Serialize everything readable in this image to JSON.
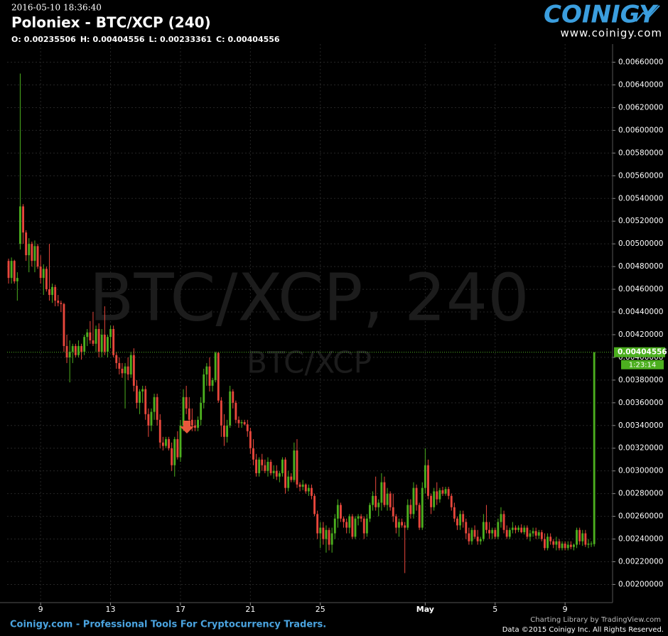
{
  "header": {
    "timestamp": "2016-05-10 18:36:40",
    "title": "Poloniex - BTC/XCP (240)",
    "ohlc_labels": [
      "O:",
      "H:",
      "L:",
      "C:"
    ]
  },
  "logo": {
    "name": "COINIGY",
    "url": "www.coinigy.com"
  },
  "footer": {
    "tagline": "Coinigy.com - Professional Tools For Cryptocurrency Traders.",
    "credit": "Charting Library by TradingView.com",
    "copyright": "Data ©2015 Coinigy Inc. All Rights Reserved."
  },
  "chart_data": {
    "type": "candlestick",
    "watermark": "BTC/XCP, 240",
    "watermark_sub": "BTC/XCP",
    "countdown": "1:23:14",
    "up_color": "#4caf1f",
    "down_color": "#e8473c",
    "grid": true,
    "xlim": [
      -0.5,
      207.3
    ],
    "xticks": [
      {
        "value": 11,
        "label": "9"
      },
      {
        "value": 35,
        "label": "13"
      },
      {
        "value": 59,
        "label": "17"
      },
      {
        "value": 83,
        "label": "21"
      },
      {
        "value": 107,
        "label": "25"
      },
      {
        "value": 143,
        "label": "May"
      },
      {
        "value": 167,
        "label": "5"
      },
      {
        "value": 191,
        "label": "9"
      }
    ],
    "ylim": [
      0.00184,
      0.00676
    ],
    "yticks": [
      {
        "value": 0.002,
        "label": "0.00200000"
      },
      {
        "value": 0.0022,
        "label": "0.00220000"
      },
      {
        "value": 0.0024,
        "label": "0.00240000"
      },
      {
        "value": 0.0026,
        "label": "0.00260000"
      },
      {
        "value": 0.0028,
        "label": "0.00280000"
      },
      {
        "value": 0.003,
        "label": "0.00300000"
      },
      {
        "value": 0.0032,
        "label": "0.00320000"
      },
      {
        "value": 0.0034,
        "label": "0.00340000"
      },
      {
        "value": 0.0036,
        "label": "0.00360000"
      },
      {
        "value": 0.0038,
        "label": "0.00380000"
      },
      {
        "value": 0.004,
        "label": "0.00400000"
      },
      {
        "value": 0.0042,
        "label": "0.00420000"
      },
      {
        "value": 0.0044,
        "label": "0.00440000"
      },
      {
        "value": 0.0046,
        "label": "0.00460000"
      },
      {
        "value": 0.0048,
        "label": "0.00480000"
      },
      {
        "value": 0.005,
        "label": "0.00500000"
      },
      {
        "value": 0.0052,
        "label": "0.00520000"
      },
      {
        "value": 0.0054,
        "label": "0.00540000"
      },
      {
        "value": 0.0056,
        "label": "0.00560000"
      },
      {
        "value": 0.0058,
        "label": "0.00580000"
      },
      {
        "value": 0.006,
        "label": "0.00600000"
      },
      {
        "value": 0.0062,
        "label": "0.00620000"
      },
      {
        "value": 0.0064,
        "label": "0.00640000"
      },
      {
        "value": 0.0066,
        "label": "0.00660000"
      }
    ],
    "ohlc": [
      [
        0.00485,
        0.00487,
        0.00465,
        0.0047
      ],
      [
        0.0047,
        0.00488,
        0.00465,
        0.00485
      ],
      [
        0.00485,
        0.00486,
        0.00465,
        0.00467
      ],
      [
        0.00467,
        0.00475,
        0.0045,
        0.0047
      ],
      [
        0.005,
        0.0065,
        0.00495,
        0.00533
      ],
      [
        0.00533,
        0.00535,
        0.005,
        0.0051
      ],
      [
        0.0051,
        0.00512,
        0.00485,
        0.0049
      ],
      [
        0.0049,
        0.00505,
        0.00475,
        0.005
      ],
      [
        0.005,
        0.00502,
        0.0048,
        0.00485
      ],
      [
        0.00485,
        0.00503,
        0.00475,
        0.00498
      ],
      [
        0.00498,
        0.005,
        0.00478,
        0.0048
      ],
      [
        0.0048,
        0.0049,
        0.00465,
        0.0047
      ],
      [
        0.0047,
        0.00482,
        0.00455,
        0.00478
      ],
      [
        0.00478,
        0.0048,
        0.00458,
        0.0046
      ],
      [
        0.0046,
        0.005,
        0.0045,
        0.00455
      ],
      [
        0.00455,
        0.00465,
        0.00448,
        0.00462
      ],
      [
        0.00462,
        0.00464,
        0.00445,
        0.0045
      ],
      [
        0.0045,
        0.00455,
        0.00445,
        0.00448
      ],
      [
        0.00448,
        0.0045,
        0.0044,
        0.00447
      ],
      [
        0.00447,
        0.00448,
        0.00405,
        0.0041
      ],
      [
        0.0041,
        0.0042,
        0.00395,
        0.004
      ],
      [
        0.004,
        0.00415,
        0.00378,
        0.00405
      ],
      [
        0.00405,
        0.00412,
        0.00395,
        0.0041
      ],
      [
        0.0041,
        0.00412,
        0.004,
        0.00402
      ],
      [
        0.00402,
        0.00415,
        0.004,
        0.0041
      ],
      [
        0.0041,
        0.00412,
        0.00398,
        0.00405
      ],
      [
        0.00405,
        0.0042,
        0.00402,
        0.00418
      ],
      [
        0.00418,
        0.00425,
        0.0041,
        0.00422
      ],
      [
        0.00422,
        0.00432,
        0.00412,
        0.00415
      ],
      [
        0.00415,
        0.0044,
        0.0041,
        0.00412
      ],
      [
        0.00412,
        0.00428,
        0.00405,
        0.00425
      ],
      [
        0.00425,
        0.0043,
        0.004,
        0.00405
      ],
      [
        0.00405,
        0.00425,
        0.004,
        0.0042
      ],
      [
        0.0042,
        0.00445,
        0.00402,
        0.00405
      ],
      [
        0.00405,
        0.0042,
        0.004,
        0.00418
      ],
      [
        0.00418,
        0.00428,
        0.00408,
        0.00425
      ],
      [
        0.00425,
        0.00428,
        0.004,
        0.00402
      ],
      [
        0.00402,
        0.00405,
        0.0039,
        0.00395
      ],
      [
        0.00395,
        0.004,
        0.00385,
        0.0039
      ],
      [
        0.0039,
        0.00395,
        0.00382,
        0.00386
      ],
      [
        0.00386,
        0.00395,
        0.00355,
        0.00392
      ],
      [
        0.00392,
        0.004,
        0.0038,
        0.00385
      ],
      [
        0.00385,
        0.00405,
        0.00382,
        0.00402
      ],
      [
        0.00402,
        0.00408,
        0.0037,
        0.00375
      ],
      [
        0.00375,
        0.0038,
        0.00355,
        0.0036
      ],
      [
        0.0036,
        0.00372,
        0.0035,
        0.0037
      ],
      [
        0.0037,
        0.00375,
        0.0036,
        0.00372
      ],
      [
        0.00372,
        0.00375,
        0.00345,
        0.0035
      ],
      [
        0.0035,
        0.00355,
        0.0033,
        0.0034
      ],
      [
        0.0034,
        0.00355,
        0.00335,
        0.00352
      ],
      [
        0.00352,
        0.00368,
        0.00345,
        0.00365
      ],
      [
        0.00365,
        0.00368,
        0.0034,
        0.00345
      ],
      [
        0.00345,
        0.0035,
        0.0032,
        0.00325
      ],
      [
        0.00325,
        0.0033,
        0.00318,
        0.00322
      ],
      [
        0.00322,
        0.0033,
        0.0032,
        0.00328
      ],
      [
        0.00328,
        0.0033,
        0.00318,
        0.0032
      ],
      [
        0.0032,
        0.00325,
        0.003,
        0.00305
      ],
      [
        0.00305,
        0.0033,
        0.00295,
        0.00328
      ],
      [
        0.00328,
        0.00335,
        0.0031,
        0.00312
      ],
      [
        0.00312,
        0.00345,
        0.00308,
        0.0034
      ],
      [
        0.0034,
        0.00372,
        0.00335,
        0.00365
      ],
      [
        0.00365,
        0.00375,
        0.0035,
        0.00355
      ],
      [
        0.00355,
        0.00365,
        0.0034,
        0.00345
      ],
      [
        0.00345,
        0.00355,
        0.00335,
        0.0034
      ],
      [
        0.0034,
        0.00345,
        0.00335,
        0.00338
      ],
      [
        0.00338,
        0.00348,
        0.00335,
        0.00345
      ],
      [
        0.00345,
        0.00365,
        0.0034,
        0.0036
      ],
      [
        0.0036,
        0.0039,
        0.00355,
        0.00385
      ],
      [
        0.00385,
        0.00395,
        0.00375,
        0.00392
      ],
      [
        0.00392,
        0.004,
        0.0037,
        0.00375
      ],
      [
        0.00375,
        0.00382,
        0.0037,
        0.0038
      ],
      [
        0.0038,
        0.00405,
        0.00378,
        0.00404
      ],
      [
        0.00404,
        0.00405,
        0.0036,
        0.00362
      ],
      [
        0.00362,
        0.00365,
        0.0033,
        0.0034
      ],
      [
        0.0034,
        0.0035,
        0.00322,
        0.0033
      ],
      [
        0.0033,
        0.00345,
        0.00325,
        0.0034
      ],
      [
        0.0034,
        0.00375,
        0.00338,
        0.0037
      ],
      [
        0.0037,
        0.00372,
        0.00355,
        0.0036
      ],
      [
        0.0036,
        0.00362,
        0.00342,
        0.00345
      ],
      [
        0.00345,
        0.00348,
        0.00338,
        0.00342
      ],
      [
        0.00342,
        0.00345,
        0.00338,
        0.00343
      ],
      [
        0.00343,
        0.00345,
        0.0034,
        0.00341
      ],
      [
        0.00341,
        0.00345,
        0.0033,
        0.00335
      ],
      [
        0.00335,
        0.00338,
        0.00315,
        0.0032
      ],
      [
        0.0032,
        0.00328,
        0.00305,
        0.0031
      ],
      [
        0.0031,
        0.00315,
        0.00295,
        0.00298
      ],
      [
        0.00298,
        0.00312,
        0.00295,
        0.0031
      ],
      [
        0.0031,
        0.00315,
        0.003,
        0.00305
      ],
      [
        0.00305,
        0.0031,
        0.00298,
        0.003
      ],
      [
        0.003,
        0.00312,
        0.00295,
        0.00308
      ],
      [
        0.00308,
        0.0031,
        0.00296,
        0.00298
      ],
      [
        0.00298,
        0.00305,
        0.00293,
        0.003
      ],
      [
        0.003,
        0.00305,
        0.00292,
        0.00295
      ],
      [
        0.00295,
        0.003,
        0.0029,
        0.00298
      ],
      [
        0.00298,
        0.00312,
        0.00295,
        0.0031
      ],
      [
        0.0031,
        0.00312,
        0.0028,
        0.00285
      ],
      [
        0.00285,
        0.003,
        0.00282,
        0.00295
      ],
      [
        0.00295,
        0.00298,
        0.0029,
        0.00292
      ],
      [
        0.00292,
        0.00325,
        0.0029,
        0.00318
      ],
      [
        0.00318,
        0.00328,
        0.00285,
        0.00288
      ],
      [
        0.00288,
        0.0029,
        0.00282,
        0.00286
      ],
      [
        0.00286,
        0.00292,
        0.00283,
        0.00288
      ],
      [
        0.00288,
        0.00289,
        0.0028,
        0.00282
      ],
      [
        0.00282,
        0.00288,
        0.00278,
        0.00285
      ],
      [
        0.00285,
        0.00288,
        0.00275,
        0.00278
      ],
      [
        0.00278,
        0.0028,
        0.0026,
        0.00262
      ],
      [
        0.00262,
        0.00265,
        0.0024,
        0.00245
      ],
      [
        0.00245,
        0.00255,
        0.00232,
        0.0025
      ],
      [
        0.0025,
        0.00255,
        0.00235,
        0.0024
      ],
      [
        0.0024,
        0.00252,
        0.00228,
        0.00248
      ],
      [
        0.00248,
        0.0025,
        0.0023,
        0.00235
      ],
      [
        0.00235,
        0.0025,
        0.00228,
        0.00245
      ],
      [
        0.00245,
        0.00262,
        0.0024,
        0.00258
      ],
      [
        0.00258,
        0.00275,
        0.0025,
        0.0027
      ],
      [
        0.0027,
        0.00272,
        0.00255,
        0.00258
      ],
      [
        0.00258,
        0.0026,
        0.0025,
        0.00255
      ],
      [
        0.00255,
        0.00258,
        0.00245,
        0.0025
      ],
      [
        0.0025,
        0.00262,
        0.00245,
        0.0026
      ],
      [
        0.0026,
        0.00262,
        0.0024,
        0.00242
      ],
      [
        0.00242,
        0.0026,
        0.0024,
        0.00258
      ],
      [
        0.00258,
        0.00262,
        0.00252,
        0.0026
      ],
      [
        0.0026,
        0.00262,
        0.00255,
        0.00258
      ],
      [
        0.00258,
        0.0026,
        0.0024,
        0.00245
      ],
      [
        0.00245,
        0.00262,
        0.00242,
        0.00258
      ],
      [
        0.00258,
        0.00272,
        0.00255,
        0.0027
      ],
      [
        0.0027,
        0.00282,
        0.00265,
        0.00278
      ],
      [
        0.00278,
        0.00295,
        0.00265,
        0.00268
      ],
      [
        0.00268,
        0.00275,
        0.0026,
        0.00272
      ],
      [
        0.00272,
        0.00298,
        0.00265,
        0.0029
      ],
      [
        0.0029,
        0.00295,
        0.00268,
        0.0027
      ],
      [
        0.0027,
        0.00285,
        0.00265,
        0.0028
      ],
      [
        0.0028,
        0.00282,
        0.00265,
        0.00268
      ],
      [
        0.00268,
        0.0028,
        0.00255,
        0.0026
      ],
      [
        0.0026,
        0.00262,
        0.00245,
        0.0025
      ],
      [
        0.0025,
        0.00258,
        0.00242,
        0.00255
      ],
      [
        0.00255,
        0.00258,
        0.0025,
        0.00252
      ],
      [
        0.00252,
        0.00255,
        0.0021,
        0.0025
      ],
      [
        0.0025,
        0.00275,
        0.00248,
        0.0027
      ],
      [
        0.0027,
        0.00275,
        0.00258,
        0.00262
      ],
      [
        0.00262,
        0.0029,
        0.00258,
        0.00285
      ],
      [
        0.00285,
        0.00288,
        0.00265,
        0.0027
      ],
      [
        0.0027,
        0.00272,
        0.00248,
        0.0025
      ],
      [
        0.0025,
        0.0029,
        0.00248,
        0.00285
      ],
      [
        0.00285,
        0.0032,
        0.0028,
        0.00305
      ],
      [
        0.00305,
        0.0031,
        0.00275,
        0.00278
      ],
      [
        0.00278,
        0.0028,
        0.00262,
        0.00268
      ],
      [
        0.00268,
        0.00285,
        0.00265,
        0.00282
      ],
      [
        0.00282,
        0.0029,
        0.0027,
        0.00275
      ],
      [
        0.00275,
        0.00285,
        0.00272,
        0.00283
      ],
      [
        0.00283,
        0.00286,
        0.00278,
        0.0028
      ],
      [
        0.0028,
        0.00286,
        0.00278,
        0.00284
      ],
      [
        0.00284,
        0.00286,
        0.00275,
        0.00278
      ],
      [
        0.00278,
        0.0028,
        0.00265,
        0.00268
      ],
      [
        0.00268,
        0.00272,
        0.00255,
        0.00258
      ],
      [
        0.00258,
        0.0026,
        0.00248,
        0.00252
      ],
      [
        0.00252,
        0.00265,
        0.00248,
        0.00262
      ],
      [
        0.00262,
        0.00265,
        0.0025,
        0.00255
      ],
      [
        0.00255,
        0.00258,
        0.0024,
        0.00245
      ],
      [
        0.00245,
        0.0025,
        0.00235,
        0.00238
      ],
      [
        0.00238,
        0.0025,
        0.00235,
        0.00248
      ],
      [
        0.00248,
        0.00252,
        0.0024,
        0.00242
      ],
      [
        0.00242,
        0.00248,
        0.00235,
        0.00238
      ],
      [
        0.00238,
        0.00242,
        0.00235,
        0.0024
      ],
      [
        0.0024,
        0.00262,
        0.00238,
        0.00255
      ],
      [
        0.00255,
        0.0027,
        0.00245,
        0.00248
      ],
      [
        0.00248,
        0.00255,
        0.0024,
        0.00245
      ],
      [
        0.00245,
        0.0025,
        0.0024,
        0.00248
      ],
      [
        0.00248,
        0.0025,
        0.0024,
        0.00242
      ],
      [
        0.00242,
        0.00258,
        0.0024,
        0.00255
      ],
      [
        0.00255,
        0.00268,
        0.0025,
        0.00262
      ],
      [
        0.00262,
        0.00265,
        0.00245,
        0.00248
      ],
      [
        0.00248,
        0.00252,
        0.0024,
        0.00242
      ],
      [
        0.00242,
        0.0025,
        0.0024,
        0.00248
      ],
      [
        0.00248,
        0.00255,
        0.00245,
        0.0025
      ],
      [
        0.0025,
        0.00252,
        0.00245,
        0.00248
      ],
      [
        0.00248,
        0.00252,
        0.00246,
        0.0025
      ],
      [
        0.0025,
        0.00253,
        0.00245,
        0.00246
      ],
      [
        0.00246,
        0.00252,
        0.00244,
        0.0025
      ],
      [
        0.0025,
        0.00252,
        0.0024,
        0.00242
      ],
      [
        0.00242,
        0.00248,
        0.00238,
        0.00245
      ],
      [
        0.00245,
        0.0025,
        0.00242,
        0.00247
      ],
      [
        0.00247,
        0.0025,
        0.0024,
        0.00243
      ],
      [
        0.00243,
        0.00248,
        0.0024,
        0.00246
      ],
      [
        0.00246,
        0.00248,
        0.00238,
        0.0024
      ],
      [
        0.0024,
        0.00245,
        0.0023,
        0.00232
      ],
      [
        0.00232,
        0.00245,
        0.0023,
        0.00242
      ],
      [
        0.00242,
        0.00245,
        0.00235,
        0.00238
      ],
      [
        0.00238,
        0.0024,
        0.00232,
        0.00235
      ],
      [
        0.00235,
        0.00242,
        0.0023,
        0.00238
      ],
      [
        0.00238,
        0.0024,
        0.0023,
        0.00232
      ],
      [
        0.00232,
        0.00238,
        0.0023,
        0.00236
      ],
      [
        0.00236,
        0.00238,
        0.0023,
        0.00232
      ],
      [
        0.00232,
        0.00238,
        0.0023,
        0.00235
      ],
      [
        0.00235,
        0.00238,
        0.00231,
        0.00233
      ],
      [
        0.00233,
        0.00236,
        0.0023,
        0.00235
      ],
      [
        0.00235,
        0.0025,
        0.00232,
        0.00248
      ],
      [
        0.00248,
        0.0025,
        0.00235,
        0.00238
      ],
      [
        0.00238,
        0.00248,
        0.00234,
        0.00245
      ],
      [
        0.00245,
        0.00248,
        0.00233,
        0.00235
      ],
      [
        0.00235,
        0.0024,
        0.00232,
        0.00236
      ],
      [
        0.00236,
        0.00238,
        0.00233,
        0.00236
      ],
      [
        0.00235506,
        0.00404556,
        0.00233361,
        0.00404556
      ]
    ]
  }
}
